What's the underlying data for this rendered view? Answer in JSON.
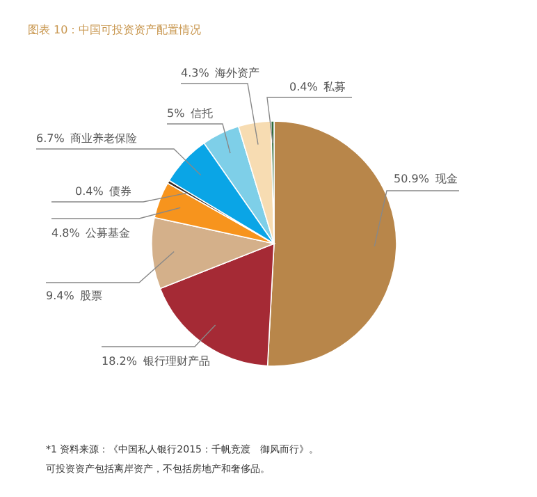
{
  "chart_data": {
    "type": "pie",
    "title": "图表 10：中国可投资资产配置情况",
    "categories": [
      "现金",
      "银行理财产品",
      "股票",
      "公募基金",
      "债券",
      "商业养老保险",
      "信托",
      "海外资产",
      "私募"
    ],
    "values": [
      50.9,
      18.2,
      9.4,
      4.8,
      0.4,
      6.7,
      5,
      4.3,
      0.4
    ],
    "colors": [
      "#b8864a",
      "#a52a35",
      "#d4b08a",
      "#f7941d",
      "#3a2a20",
      "#0aa5e6",
      "#7ecfe8",
      "#f7dcb2",
      "#2f6b3a"
    ],
    "value_labels": [
      "50.9%",
      "18.2%",
      "9.4%",
      "4.8%",
      "0.4%",
      "6.7%",
      "5%",
      "4.3%",
      "0.4%"
    ],
    "annotations": [
      "*1 资料来源：《中国私人银行2015：千帆竞渡　御风而行》。",
      "可投资资产包括离岸资产，不包括房地产和奢侈品。"
    ]
  }
}
